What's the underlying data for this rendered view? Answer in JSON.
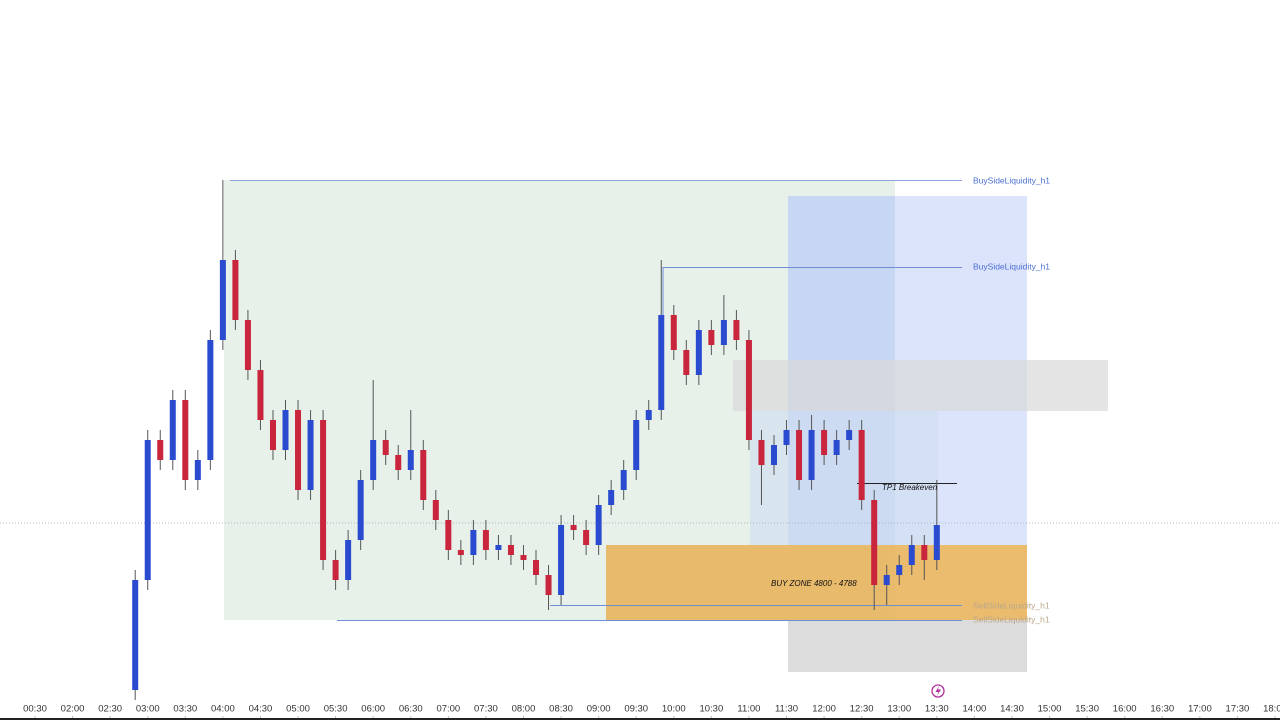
{
  "chart_data": {
    "type": "candlestick",
    "up_color": "#2a4bd0",
    "down_color": "#c9253d",
    "xlim": [
      30,
      1080
    ],
    "ylim": [
      4772,
      4887.2
    ],
    "xticks": [
      {
        "value": 30,
        "label": "00:30"
      },
      {
        "value": 120,
        "label": "02:00"
      },
      {
        "value": 150,
        "label": "02:30"
      },
      {
        "value": 180,
        "label": "03:00"
      },
      {
        "value": 210,
        "label": "03:30"
      },
      {
        "value": 240,
        "label": "04:00"
      },
      {
        "value": 270,
        "label": "04:30"
      },
      {
        "value": 300,
        "label": "05:00"
      },
      {
        "value": 330,
        "label": "05:30"
      },
      {
        "value": 360,
        "label": "06:00"
      },
      {
        "value": 390,
        "label": "06:30"
      },
      {
        "value": 420,
        "label": "07:00"
      },
      {
        "value": 450,
        "label": "07:30"
      },
      {
        "value": 480,
        "label": "08:00"
      },
      {
        "value": 510,
        "label": "08:30"
      },
      {
        "value": 540,
        "label": "09:00"
      },
      {
        "value": 570,
        "label": "09:30"
      },
      {
        "value": 600,
        "label": "10:00"
      },
      {
        "value": 630,
        "label": "10:30"
      },
      {
        "value": 660,
        "label": "11:00"
      },
      {
        "value": 690,
        "label": "11:30"
      },
      {
        "value": 720,
        "label": "12:00"
      },
      {
        "value": 750,
        "label": "12:30"
      },
      {
        "value": 780,
        "label": "13:00"
      },
      {
        "value": 810,
        "label": "13:30"
      },
      {
        "value": 840,
        "label": "14:00"
      },
      {
        "value": 870,
        "label": "14:30"
      },
      {
        "value": 900,
        "label": "15:00"
      },
      {
        "value": 930,
        "label": "15:30"
      },
      {
        "value": 960,
        "label": "16:00"
      },
      {
        "value": 990,
        "label": "16:30"
      },
      {
        "value": 1020,
        "label": "17:00"
      },
      {
        "value": 1050,
        "label": "17:30"
      },
      {
        "value": 1080,
        "label": "18:00"
      }
    ],
    "x": [
      170,
      180,
      190,
      200,
      210,
      220,
      230,
      240,
      250,
      260,
      270,
      280,
      290,
      300,
      310,
      320,
      330,
      340,
      350,
      360,
      370,
      380,
      390,
      400,
      410,
      420,
      430,
      440,
      450,
      460,
      470,
      480,
      490,
      500,
      510,
      520,
      530,
      540,
      550,
      560,
      570,
      580,
      590,
      600,
      610,
      620,
      630,
      640,
      650,
      660,
      670,
      680,
      690,
      700,
      710,
      720,
      730,
      740,
      750,
      760,
      770,
      780,
      790,
      800,
      810
    ],
    "open": [
      4776.8,
      4794.4,
      4816.8,
      4813.6,
      4823.2,
      4810.4,
      4813.6,
      4832.8,
      4845.6,
      4836.0,
      4828.0,
      4820.0,
      4815.2,
      4821.6,
      4808.8,
      4820.0,
      4797.6,
      4794.4,
      4800.8,
      4810.4,
      4816.8,
      4814.4,
      4812.0,
      4815.2,
      4807.2,
      4804.0,
      4799.2,
      4798.4,
      4802.4,
      4799.2,
      4800.0,
      4798.4,
      4797.6,
      4795.2,
      4792.0,
      4803.2,
      4802.4,
      4800.0,
      4806.4,
      4808.8,
      4812.0,
      4820.0,
      4821.6,
      4836.8,
      4831.2,
      4827.2,
      4834.4,
      4832.0,
      4836.0,
      4832.8,
      4816.8,
      4812.8,
      4816.0,
      4818.4,
      4810.4,
      4818.4,
      4814.4,
      4816.8,
      4818.4,
      4807.2,
      4793.6,
      4795.2,
      4796.8,
      4800.0,
      4797.6
    ],
    "high": [
      4796.0,
      4818.4,
      4818.4,
      4824.8,
      4824.8,
      4815.2,
      4834.4,
      4858.4,
      4847.2,
      4837.6,
      4829.6,
      4821.6,
      4823.2,
      4823.2,
      4821.6,
      4821.6,
      4799.2,
      4802.4,
      4812.0,
      4826.4,
      4818.4,
      4816.0,
      4821.6,
      4816.8,
      4808.8,
      4805.6,
      4800.8,
      4804.0,
      4804.0,
      4801.6,
      4801.6,
      4800.0,
      4799.2,
      4796.8,
      4804.8,
      4804.8,
      4804.0,
      4808.0,
      4810.4,
      4813.6,
      4821.6,
      4823.2,
      4845.6,
      4838.4,
      4832.8,
      4836.0,
      4836.0,
      4840.0,
      4837.6,
      4834.4,
      4818.4,
      4817.6,
      4820.0,
      4820.0,
      4820.8,
      4820.0,
      4818.4,
      4820.0,
      4820.0,
      4808.8,
      4796.8,
      4798.4,
      4801.6,
      4801.6,
      4810.4
    ],
    "low": [
      4775.2,
      4792.8,
      4812.0,
      4812.0,
      4808.8,
      4808.8,
      4812.0,
      4831.2,
      4834.4,
      4826.4,
      4818.4,
      4813.6,
      4813.6,
      4807.2,
      4807.2,
      4796.0,
      4792.8,
      4792.8,
      4799.2,
      4808.8,
      4812.8,
      4810.4,
      4810.4,
      4805.6,
      4802.4,
      4797.6,
      4796.8,
      4796.8,
      4797.6,
      4797.6,
      4796.8,
      4796.0,
      4793.6,
      4789.6,
      4790.4,
      4800.8,
      4798.4,
      4798.4,
      4804.8,
      4807.2,
      4810.4,
      4818.4,
      4820.0,
      4829.6,
      4825.6,
      4825.6,
      4830.4,
      4830.4,
      4831.2,
      4815.2,
      4806.4,
      4811.2,
      4814.4,
      4808.8,
      4808.8,
      4812.8,
      4812.8,
      4815.2,
      4805.6,
      4789.6,
      4790.4,
      4793.6,
      4795.2,
      4794.4,
      4796.0
    ],
    "close": [
      4794.4,
      4816.8,
      4813.6,
      4823.2,
      4810.4,
      4813.6,
      4832.8,
      4845.6,
      4836.0,
      4828.0,
      4820.0,
      4815.2,
      4821.6,
      4808.8,
      4820.0,
      4797.6,
      4794.4,
      4800.8,
      4810.4,
      4816.8,
      4814.4,
      4812.0,
      4815.2,
      4807.2,
      4804.0,
      4799.2,
      4798.4,
      4802.4,
      4799.2,
      4800.0,
      4798.4,
      4797.6,
      4795.2,
      4792.0,
      4803.2,
      4802.4,
      4800.0,
      4806.4,
      4808.8,
      4812.0,
      4820.0,
      4821.6,
      4836.8,
      4831.2,
      4827.2,
      4834.4,
      4832.0,
      4836.0,
      4832.8,
      4816.8,
      4812.8,
      4816.0,
      4818.4,
      4810.4,
      4818.4,
      4814.4,
      4816.8,
      4818.4,
      4807.2,
      4793.6,
      4795.2,
      4796.8,
      4800.0,
      4797.6,
      4803.2
    ],
    "annotations": [
      "BuySideLiquidity_h1",
      "BuySideLiquidity_h1",
      "TP1 Breakeven",
      "BUY ZONE 4800 - 4788",
      "SellSideLiquidity_h1",
      "SellSideLiquidity_h1"
    ]
  }
}
